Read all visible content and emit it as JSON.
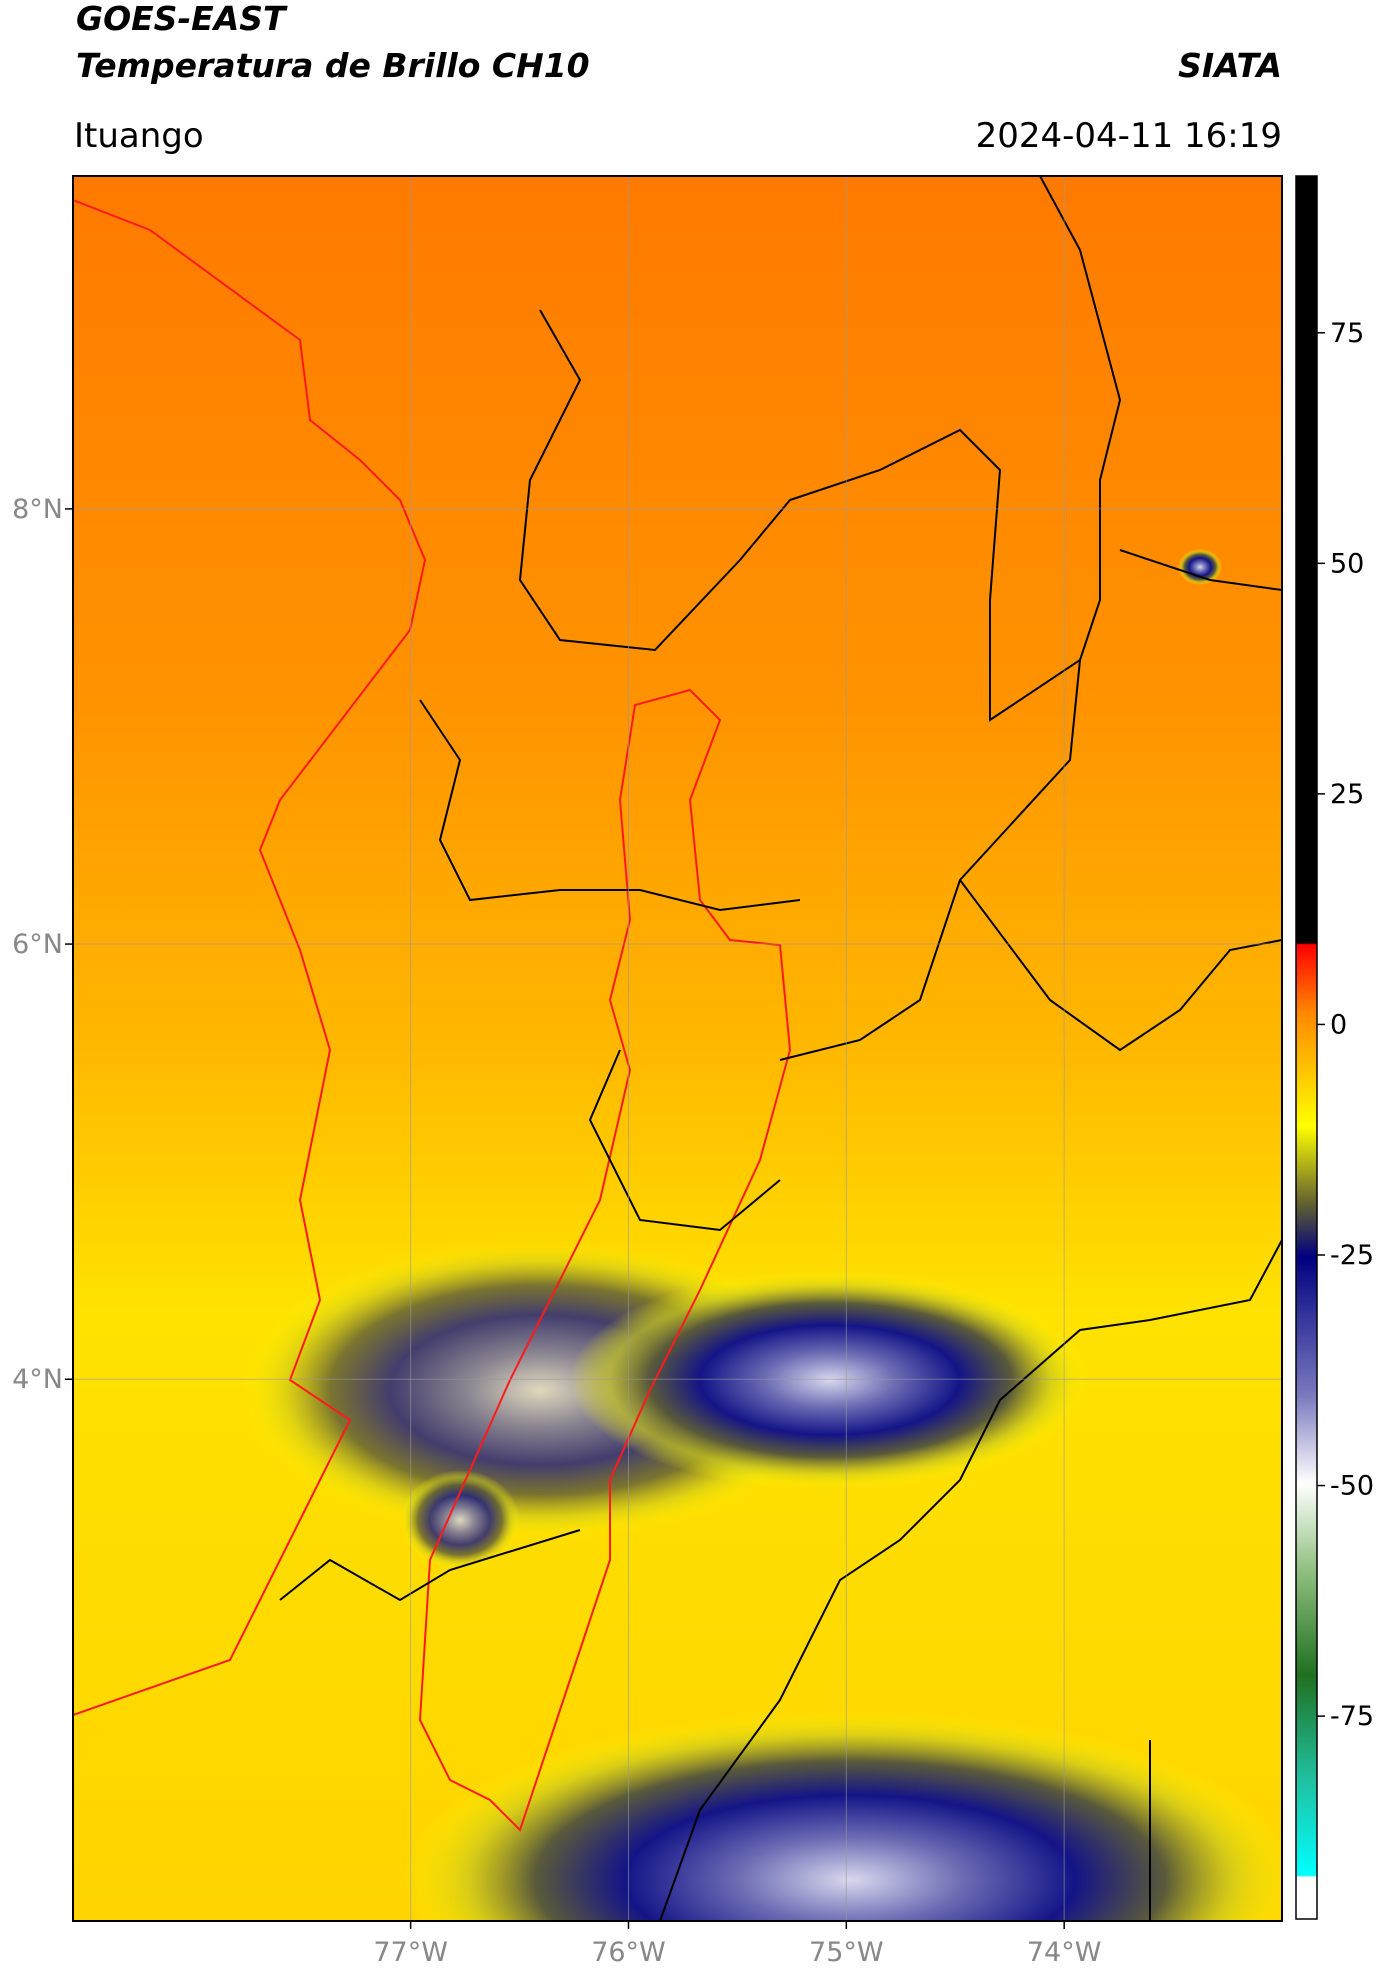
{
  "header": {
    "title": "GOES-EAST",
    "subtitle": "Temperatura de Brillo CH10",
    "source": "SIATA",
    "location": "Ituango",
    "timestamp": "2024-04-11 16:19"
  },
  "map": {
    "lat_range": [
      1.51,
      9.53
    ],
    "lon_range": [
      -78.55,
      -73.0
    ],
    "grid": true,
    "lat_ticks": [
      {
        "value": 8,
        "label": "8°N"
      },
      {
        "value": 6,
        "label": "6°N"
      },
      {
        "value": 4,
        "label": "4°N"
      }
    ],
    "lon_ticks": [
      {
        "value": -77,
        "label": "77°W"
      },
      {
        "value": -76,
        "label": "76°W"
      },
      {
        "value": -75,
        "label": "75°W"
      },
      {
        "value": -74,
        "label": "74°W"
      }
    ]
  },
  "colorbar": {
    "range": [
      -97,
      92
    ],
    "ticks": [
      75,
      50,
      25,
      0,
      -25,
      -50,
      -75
    ]
  }
}
